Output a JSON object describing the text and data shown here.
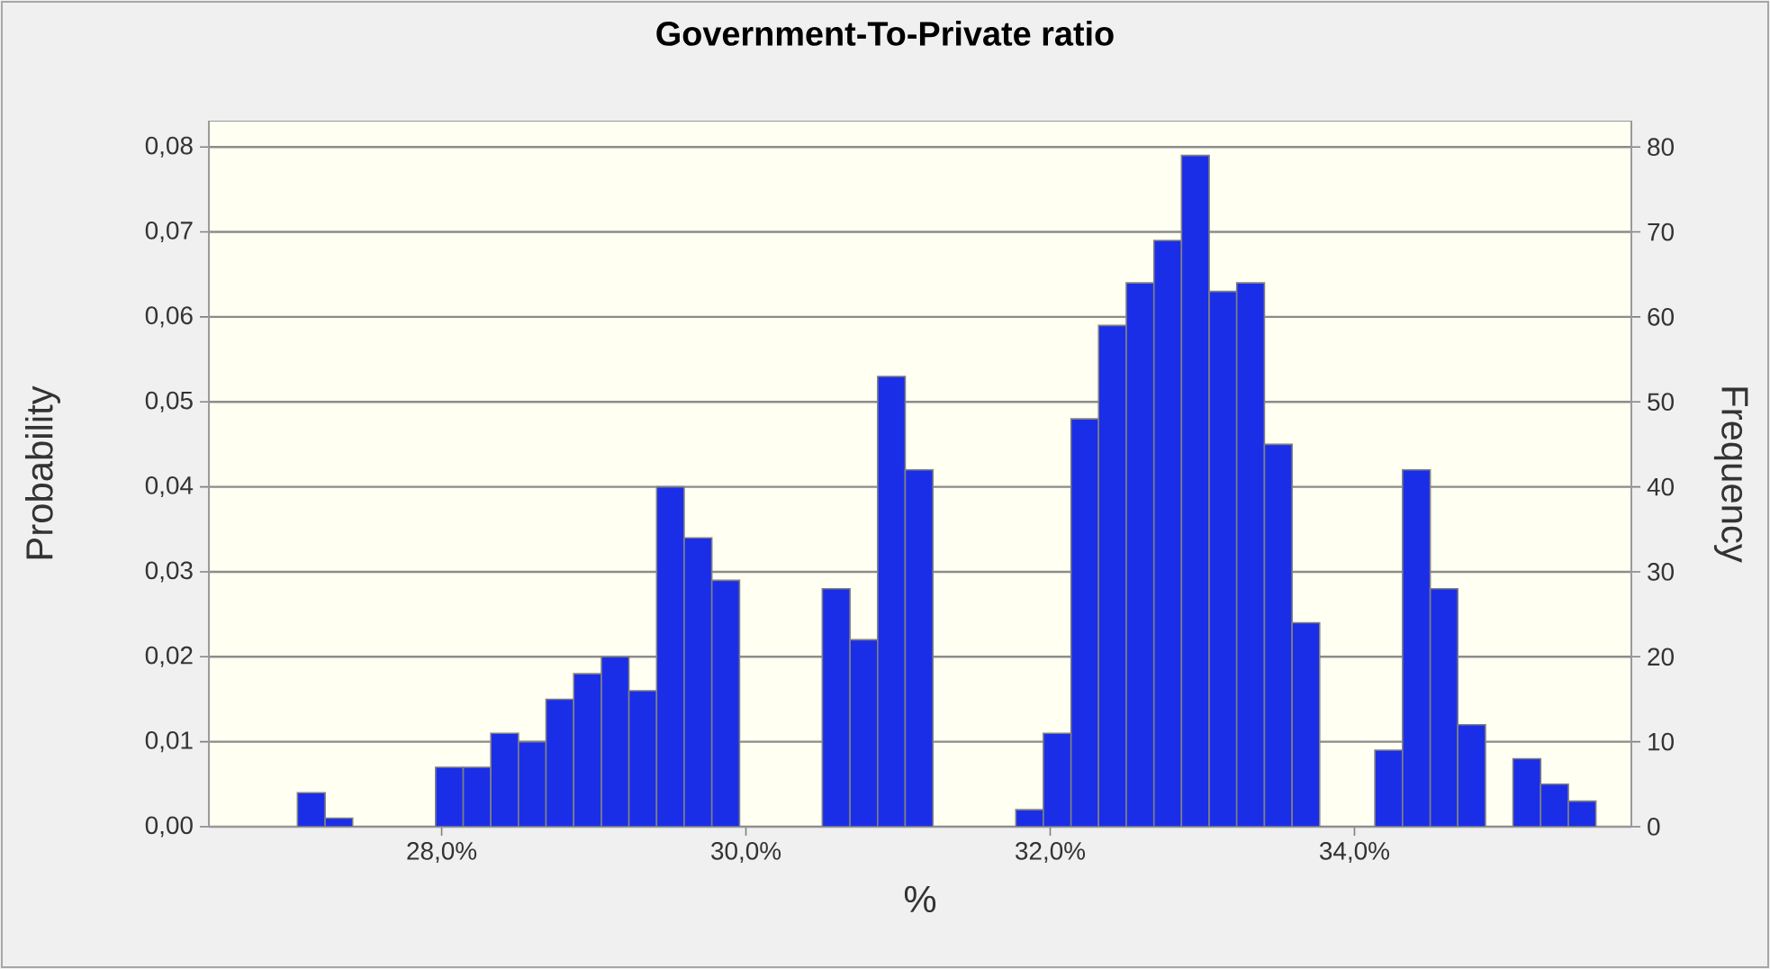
{
  "chart_data": {
    "type": "histogram",
    "title": "Government-To-Private ratio",
    "xlabel": "%",
    "ylabel": "Probability",
    "y2label": "Frequency",
    "bins": [
      27.052,
      27.234,
      27.415,
      27.597,
      27.778,
      27.96,
      28.142,
      28.323,
      28.505,
      28.686,
      28.868,
      29.05,
      29.231,
      29.413,
      29.594,
      29.776,
      29.958,
      30.139,
      30.321,
      30.502,
      30.684,
      30.866,
      31.047,
      31.229,
      31.41,
      31.592,
      31.774,
      31.955,
      32.137,
      32.318,
      32.5,
      32.682,
      32.863,
      33.045,
      33.226,
      33.408,
      33.59,
      33.771,
      33.953,
      34.134,
      34.316,
      34.498,
      34.679,
      34.861,
      35.042,
      35.224,
      35.406,
      35.587
    ],
    "series": [
      {
        "color": "#1a2ee8",
        "axis": "y2",
        "values": [
          4,
          1,
          0,
          0,
          0,
          7,
          7,
          11,
          10,
          15,
          18,
          20,
          16,
          40,
          34,
          29,
          0,
          0,
          0,
          28,
          22,
          53,
          42,
          0,
          0,
          0,
          2,
          11,
          48,
          59,
          64,
          69,
          79,
          63,
          64,
          45,
          24,
          0,
          0,
          9,
          42,
          28,
          12,
          0,
          8,
          5,
          3
        ]
      }
    ],
    "xlim": [
      26.47,
      35.82
    ],
    "xticks": [
      {
        "value": 28,
        "label": "28,0%"
      },
      {
        "value": 30,
        "label": "30,0%"
      },
      {
        "value": 32,
        "label": "32,0%"
      },
      {
        "value": 34,
        "label": "34,0%"
      }
    ],
    "ylim": [
      0,
      0.0831
    ],
    "yticks": [
      {
        "value": 0,
        "label": "0,00"
      },
      {
        "value": 0.01,
        "label": "0,01"
      },
      {
        "value": 0.02,
        "label": "0,02"
      },
      {
        "value": 0.03,
        "label": "0,03"
      },
      {
        "value": 0.04,
        "label": "0,04"
      },
      {
        "value": 0.05,
        "label": "0,05"
      },
      {
        "value": 0.06,
        "label": "0,06"
      },
      {
        "value": 0.07,
        "label": "0,07"
      },
      {
        "value": 0.08,
        "label": "0,08"
      }
    ],
    "y2lim": [
      0,
      83.1
    ],
    "y2ticks": [
      0,
      10,
      20,
      30,
      40,
      50,
      60,
      70,
      80
    ],
    "grid": "y"
  }
}
